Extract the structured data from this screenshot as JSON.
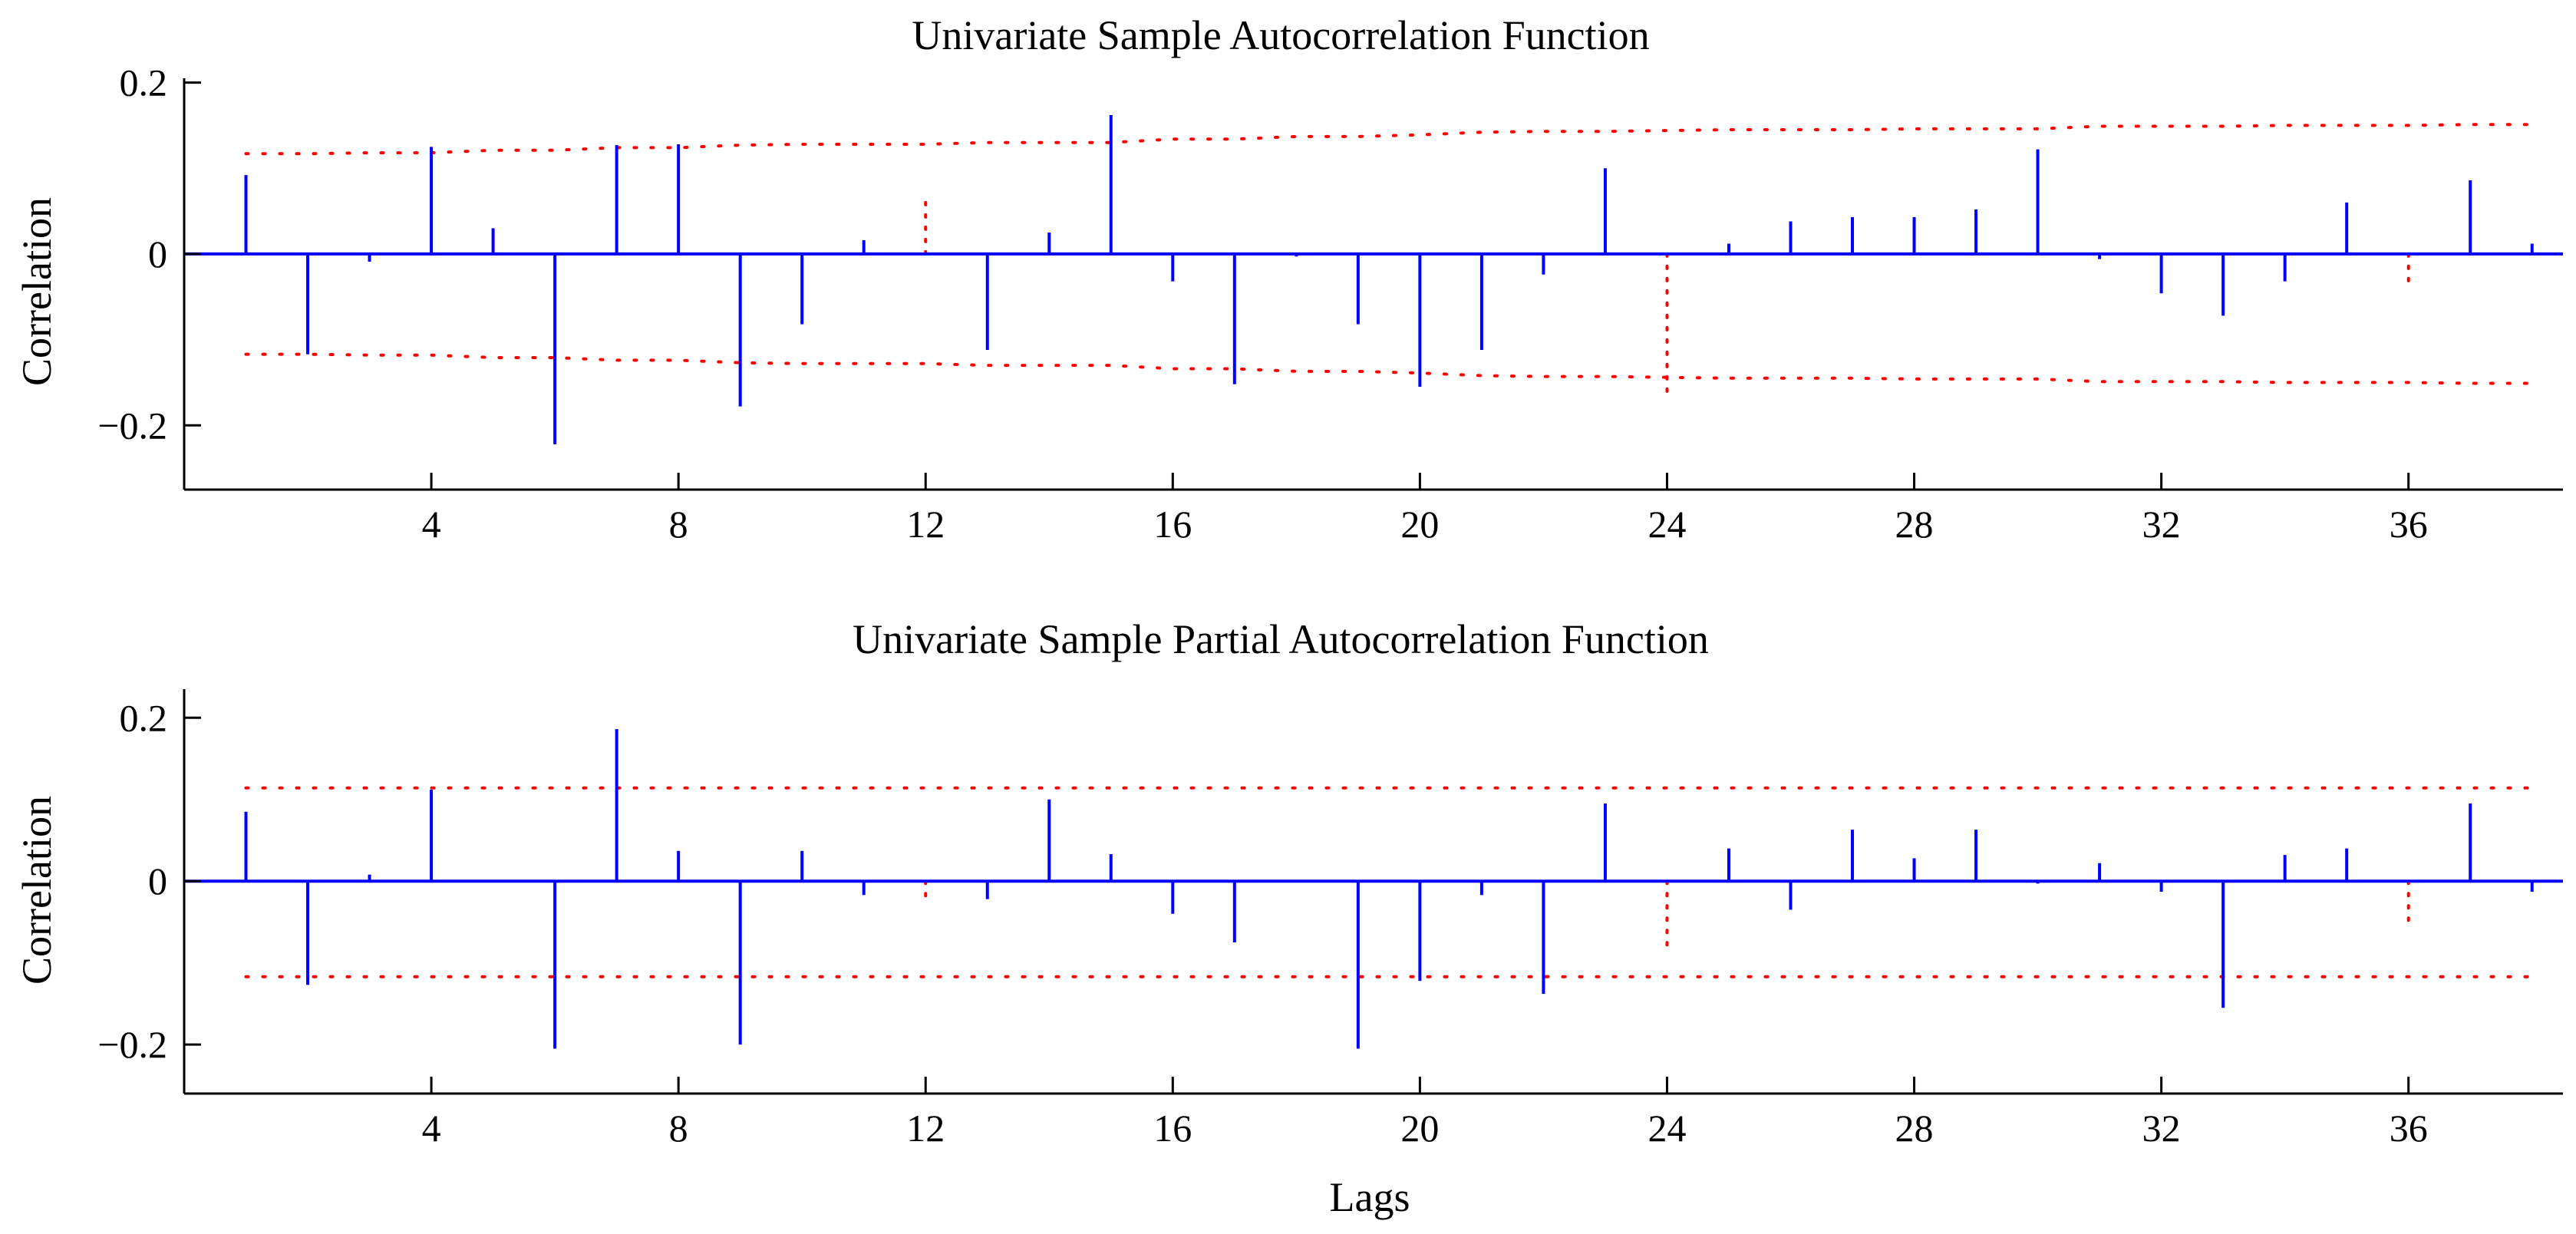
{
  "chart_data": [
    {
      "type": "stem",
      "title": "Univariate Sample Autocorrelation Function",
      "ylabel": "Correlation",
      "xlabel": "",
      "xlim": [
        0,
        38.5
      ],
      "ylim": [
        -0.275,
        0.205
      ],
      "xticks": [
        4,
        8,
        12,
        16,
        20,
        24,
        28,
        32,
        36
      ],
      "xtick_labels": [
        "4",
        "8",
        "12",
        "16",
        "20",
        "24",
        "28",
        "32",
        "36"
      ],
      "yticks": [
        0.2,
        0,
        -0.2
      ],
      "ytick_labels": [
        "0.2",
        "0",
        "−0.2"
      ],
      "series": [
        {
          "x": [
            1,
            2,
            3,
            4,
            5,
            6,
            7,
            8,
            9,
            10,
            11,
            12,
            13,
            14,
            15,
            16,
            17,
            18,
            19,
            20,
            21,
            22,
            23,
            24,
            25,
            26,
            27,
            28,
            29,
            30,
            31,
            32,
            33,
            34,
            35,
            36,
            37,
            38
          ],
          "values": [
            0.092,
            -0.117,
            -0.009,
            0.125,
            0.03,
            -0.222,
            0.127,
            0.128,
            -0.178,
            -0.082,
            0.016,
            0.0,
            -0.112,
            0.025,
            0.162,
            -0.032,
            -0.152,
            -0.003,
            -0.082,
            -0.155,
            -0.112,
            -0.024,
            0.1,
            0.0,
            0.012,
            0.038,
            0.043,
            0.043,
            0.052,
            0.122,
            -0.006,
            -0.046,
            -0.072,
            -0.032,
            0.06,
            0.0,
            0.086,
            0.012
          ]
        }
      ],
      "confidence_bounds": {
        "x": [
          1,
          2,
          3,
          4,
          5,
          6,
          7,
          8,
          9,
          10,
          11,
          12,
          13,
          14,
          15,
          16,
          17,
          18,
          19,
          20,
          21,
          22,
          23,
          24,
          25,
          26,
          27,
          28,
          29,
          30,
          31,
          32,
          33,
          34,
          35,
          36,
          37,
          38
        ],
        "upper": [
          0.117,
          0.117,
          0.118,
          0.118,
          0.121,
          0.121,
          0.124,
          0.124,
          0.127,
          0.128,
          0.128,
          0.128,
          0.13,
          0.13,
          0.13,
          0.134,
          0.134,
          0.137,
          0.137,
          0.139,
          0.142,
          0.143,
          0.143,
          0.144,
          0.145,
          0.145,
          0.145,
          0.146,
          0.146,
          0.146,
          0.149,
          0.149,
          0.149,
          0.15,
          0.15,
          0.15,
          0.151,
          0.151
        ],
        "lower": [
          -0.117,
          -0.117,
          -0.118,
          -0.118,
          -0.121,
          -0.121,
          -0.124,
          -0.124,
          -0.127,
          -0.128,
          -0.128,
          -0.128,
          -0.13,
          -0.13,
          -0.13,
          -0.134,
          -0.134,
          -0.137,
          -0.137,
          -0.139,
          -0.142,
          -0.143,
          -0.143,
          -0.144,
          -0.145,
          -0.145,
          -0.145,
          -0.146,
          -0.146,
          -0.146,
          -0.149,
          -0.149,
          -0.149,
          -0.15,
          -0.15,
          -0.15,
          -0.151,
          -0.151
        ]
      },
      "extra_dotted_markers": [
        {
          "x": 12,
          "from": 0,
          "to": 0.06
        },
        {
          "x": 24,
          "from": 0,
          "to": -0.165
        },
        {
          "x": 36,
          "from": 0,
          "to": -0.035
        }
      ],
      "grid": false,
      "colors": {
        "stems": "#0000ff",
        "bounds": "#ff0000",
        "axes": "#000000"
      }
    },
    {
      "type": "stem",
      "title": "Univariate Sample Partial Autocorrelation Function",
      "ylabel": "Correlation",
      "xlabel": "Lags",
      "xlim": [
        0,
        38.5
      ],
      "ylim": [
        -0.26,
        0.235
      ],
      "xticks": [
        4,
        8,
        12,
        16,
        20,
        24,
        28,
        32,
        36
      ],
      "xtick_labels": [
        "4",
        "8",
        "12",
        "16",
        "20",
        "24",
        "28",
        "32",
        "36"
      ],
      "yticks": [
        0.2,
        0,
        -0.2
      ],
      "ytick_labels": [
        "0.2",
        "0",
        "−0.2"
      ],
      "series": [
        {
          "x": [
            1,
            2,
            3,
            4,
            5,
            6,
            7,
            8,
            9,
            10,
            11,
            12,
            13,
            14,
            15,
            16,
            17,
            18,
            19,
            20,
            21,
            22,
            23,
            24,
            25,
            26,
            27,
            28,
            29,
            30,
            31,
            32,
            33,
            34,
            35,
            36,
            37,
            38
          ],
          "values": [
            0.085,
            -0.127,
            0.008,
            0.112,
            0.0,
            -0.205,
            0.186,
            0.037,
            -0.2,
            0.037,
            -0.017,
            0.0,
            -0.022,
            0.1,
            0.033,
            -0.04,
            -0.075,
            0.0,
            -0.205,
            -0.122,
            -0.017,
            -0.138,
            0.095,
            0.0,
            0.04,
            -0.035,
            0.063,
            0.028,
            0.063,
            -0.003,
            0.022,
            -0.013,
            -0.155,
            0.032,
            0.04,
            0.0,
            0.095,
            -0.013
          ]
        }
      ],
      "confidence_bounds": {
        "x": [
          1,
          2,
          3,
          4,
          5,
          6,
          7,
          8,
          9,
          10,
          11,
          12,
          13,
          14,
          15,
          16,
          17,
          18,
          19,
          20,
          21,
          22,
          23,
          24,
          25,
          26,
          27,
          28,
          29,
          30,
          31,
          32,
          33,
          34,
          35,
          36,
          37,
          38
        ],
        "upper": [
          0.114,
          0.114,
          0.114,
          0.114,
          0.114,
          0.114,
          0.114,
          0.114,
          0.114,
          0.114,
          0.114,
          0.114,
          0.114,
          0.114,
          0.114,
          0.114,
          0.114,
          0.114,
          0.114,
          0.114,
          0.114,
          0.114,
          0.114,
          0.114,
          0.114,
          0.114,
          0.114,
          0.114,
          0.114,
          0.114,
          0.114,
          0.114,
          0.114,
          0.114,
          0.114,
          0.114,
          0.114,
          0.114
        ],
        "lower": [
          -0.117,
          -0.117,
          -0.117,
          -0.117,
          -0.117,
          -0.117,
          -0.117,
          -0.117,
          -0.117,
          -0.117,
          -0.117,
          -0.117,
          -0.117,
          -0.117,
          -0.117,
          -0.117,
          -0.117,
          -0.117,
          -0.117,
          -0.117,
          -0.117,
          -0.117,
          -0.117,
          -0.117,
          -0.117,
          -0.117,
          -0.117,
          -0.117,
          -0.117,
          -0.117,
          -0.117,
          -0.117,
          -0.117,
          -0.117,
          -0.117,
          -0.117,
          -0.117,
          -0.117
        ]
      },
      "extra_dotted_markers": [
        {
          "x": 12,
          "from": 0,
          "to": -0.03
        },
        {
          "x": 24,
          "from": 0,
          "to": -0.09
        },
        {
          "x": 36,
          "from": 0,
          "to": -0.06
        }
      ],
      "grid": false,
      "colors": {
        "stems": "#0000ff",
        "bounds": "#ff0000",
        "axes": "#000000"
      }
    }
  ]
}
